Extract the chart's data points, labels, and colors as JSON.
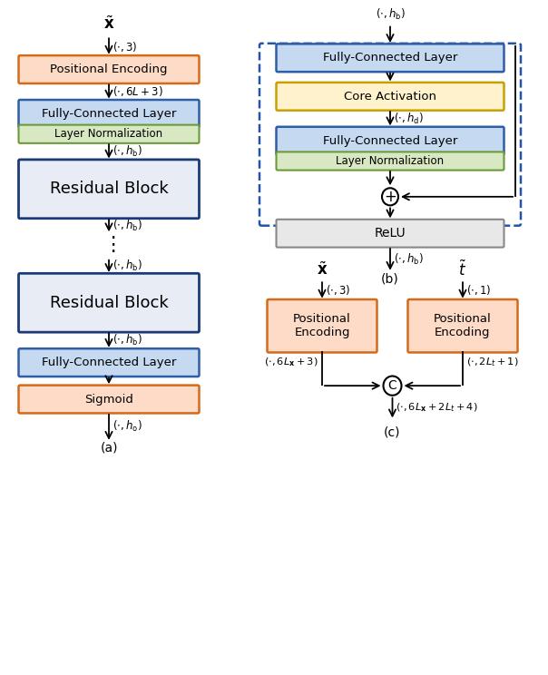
{
  "fig_width": 6.04,
  "fig_height": 7.44,
  "dpi": 100,
  "colors": {
    "orange_fill": "#FDDBC7",
    "orange_edge": "#D46A1A",
    "blue_fill": "#C5D9F1",
    "blue_edge": "#2E5EA8",
    "green_fill": "#D8E8C2",
    "green_edge": "#6A9A3A",
    "yellow_fill": "#FFF2CC",
    "yellow_edge": "#C8A000",
    "gray_fill": "#E8E8E8",
    "gray_edge": "#888888",
    "dark_blue_fill": "#E8EDF5",
    "dark_blue_edge": "#1A3A7A",
    "white": "#FFFFFF",
    "black": "#000000",
    "dashed_blue": "#2255AA"
  },
  "label_a": "(a)",
  "label_b": "(b)",
  "label_c": "(c)"
}
